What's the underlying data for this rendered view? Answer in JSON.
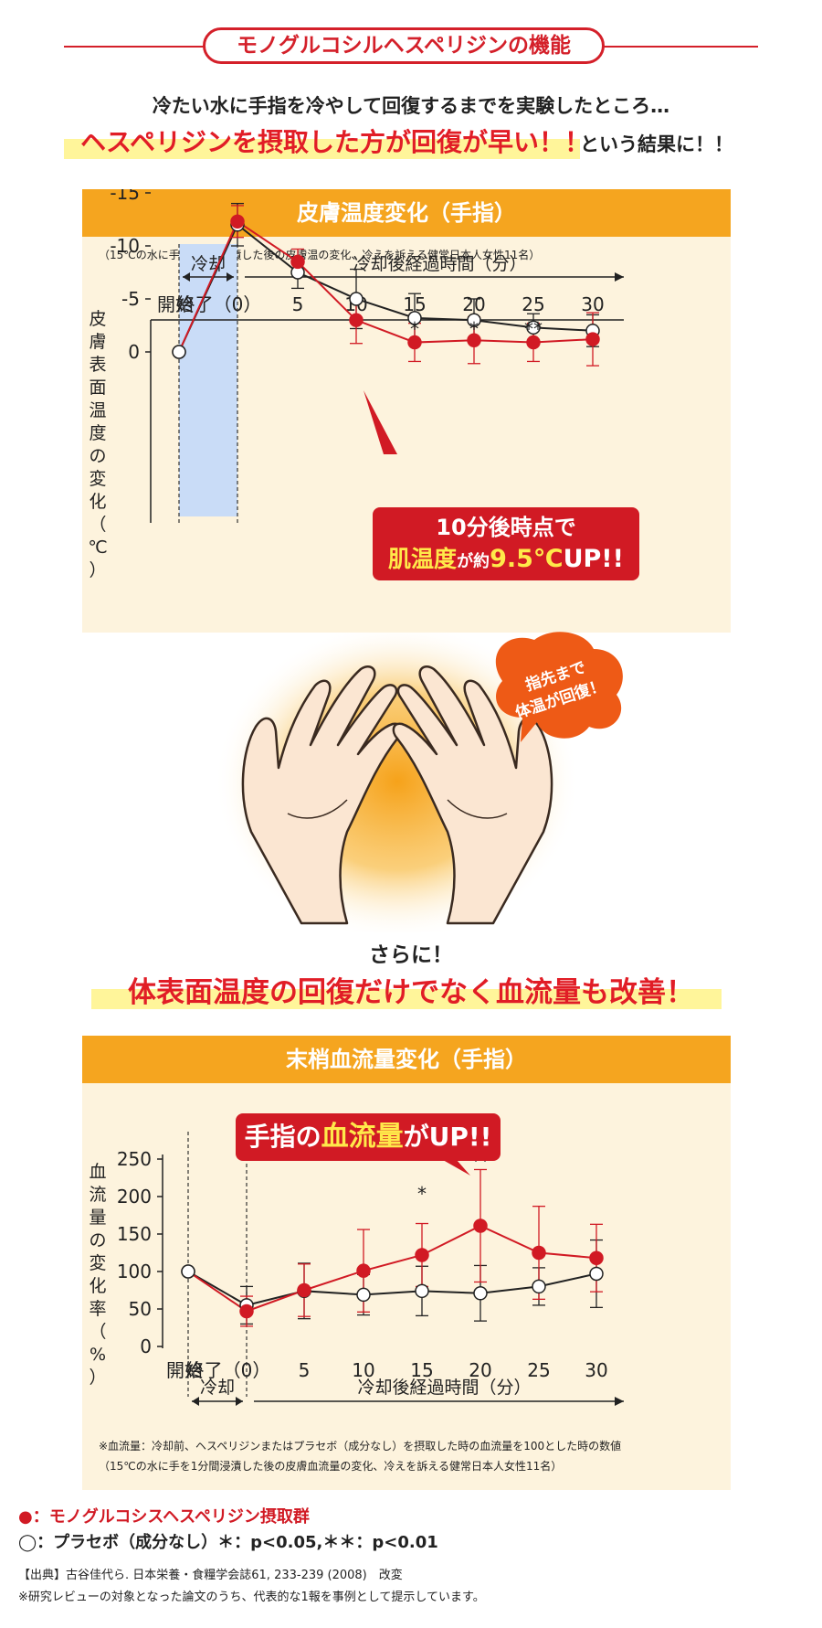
{
  "page_title": "モノグルコシルヘスペリジンの機能",
  "intro": "冷たい水に手指を冷やして回復するまでを実験したところ…",
  "headline": {
    "red": "ヘスペリジンを摂取した方が回復が早い！！",
    "black": "という結果に！！"
  },
  "mid": {
    "line1": "さらに！",
    "line2": "体表面温度の回復だけでなく血流量も改善！"
  },
  "speech_bubble": {
    "line1": "指先まで",
    "line2": "体温が回復！"
  },
  "legend": {
    "hes": "●：モノグルコシスヘスペリジン摂取群",
    "placebo": "◯：プラセボ（成分なし）＊：p<0.05,＊＊：p<0.01"
  },
  "source": "【出典】古谷佳代ら. 日本栄養・食糧学会誌61, 233-239 (2008)　改変",
  "source_note": "※研究レビューの対象となった論文のうち、代表的な1報を事例として提示しています。",
  "colors": {
    "red": "#d11a24",
    "orange": "#f5a51f",
    "panel": "#fdf3dd",
    "cool": "#c9dcf7",
    "highlight": "#fff59a"
  },
  "chart_data": [
    {
      "type": "line",
      "title": "皮膚温度変化（手指）",
      "subtitle": "（15℃の水に手を1分間浸漬した後の皮膚温の変化、冷えを訴える健常日本人女性11名）",
      "ylabel": "皮膚表面温度の変化（℃）",
      "xlabel": "冷却後経過時間（分）",
      "cool_label": "冷却",
      "categories": [
        "開始",
        "終了（0）",
        "5",
        "10",
        "15",
        "20",
        "25",
        "30"
      ],
      "yticks": [
        "0",
        "-5",
        "-10",
        "-15"
      ],
      "ylim": [
        -15,
        2
      ],
      "series": [
        {
          "values": [
            0,
            -12.3,
            -8.5,
            -3.0,
            -0.9,
            -1.1,
            -0.9,
            -1.2
          ],
          "errors": [
            0,
            1.5,
            1.2,
            2.2,
            1.8,
            2.2,
            1.8,
            2.5
          ],
          "color": "#d11a24",
          "marker": "filled"
        },
        {
          "values": [
            0,
            -12.0,
            -7.5,
            -5.0,
            -3.2,
            -3.0,
            -2.3,
            -2.0
          ],
          "errors": [
            0,
            2.0,
            1.5,
            2.8,
            2.3,
            2.0,
            1.3,
            1.5
          ],
          "color": "#222222",
          "marker": "open"
        }
      ],
      "significance": [
        null,
        null,
        null,
        null,
        "*",
        "*",
        "**",
        null
      ],
      "callout": {
        "line1": "10分後時点で",
        "line2_a": "肌温度",
        "line2_b": "が約",
        "line2_c": "9.5℃",
        "line2_d": "UP!!"
      }
    },
    {
      "type": "line",
      "title": "末梢血流量変化（手指）",
      "ylabel": "血流量の変化率（%）",
      "xlabel": "冷却後経過時間（分）",
      "cool_label": "冷却",
      "categories": [
        "開始",
        "終了（0）",
        "5",
        "10",
        "15",
        "20",
        "25",
        "30"
      ],
      "yticks": [
        "0",
        "50",
        "100",
        "150",
        "200",
        "250"
      ],
      "ylim": [
        0,
        250
      ],
      "series": [
        {
          "values": [
            100,
            47,
            75,
            101,
            122,
            161,
            125,
            118
          ],
          "errors": [
            0,
            20,
            35,
            55,
            42,
            75,
            62,
            45
          ],
          "color": "#d11a24",
          "marker": "filled"
        },
        {
          "values": [
            100,
            55,
            74,
            69,
            74,
            71,
            80,
            97
          ],
          "errors": [
            0,
            25,
            37,
            27,
            33,
            37,
            25,
            45
          ],
          "color": "#222222",
          "marker": "open"
        }
      ],
      "significance": [
        null,
        null,
        null,
        null,
        "*",
        "**",
        null,
        null
      ],
      "callout": {
        "a": "手指の",
        "b": "血流量",
        "c": "がUP!!"
      },
      "note1": "※血流量：冷却前、ヘスペリジンまたはプラセボ（成分なし）を摂取した時の血流量を100とした時の数値",
      "note2": "（15℃の水に手を1分間浸漬した後の皮膚血流量の変化、冷えを訴える健常日本人女性11名）"
    }
  ]
}
